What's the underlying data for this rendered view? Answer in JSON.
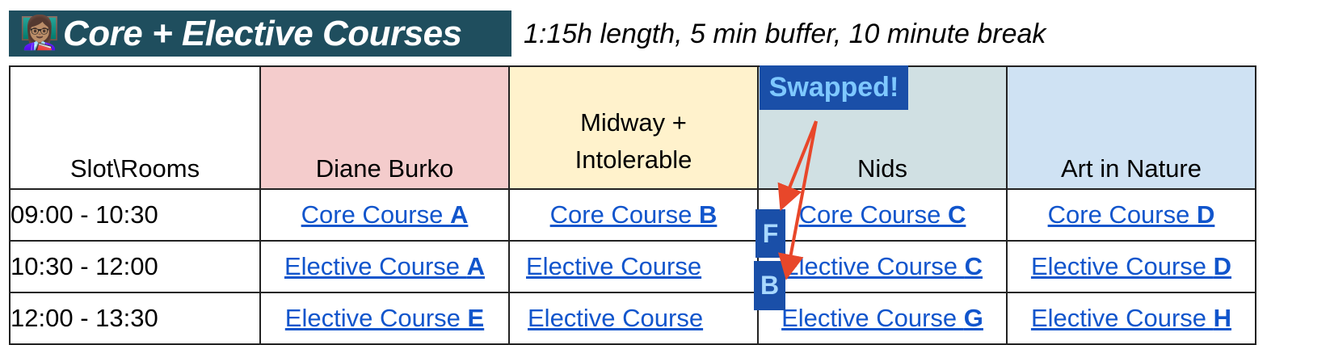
{
  "title": {
    "emoji": "👩🏽‍🏫",
    "text": "Core + Elective Courses",
    "subtitle": "1:15h length, 5 min buffer, 10 minute break"
  },
  "table": {
    "corner": "Slot\\Rooms",
    "rooms": [
      {
        "name": "Diane Burko",
        "color": "#f4cccc"
      },
      {
        "name": "Midway +\nIntolerable",
        "color": "#fff2cc"
      },
      {
        "name": "Nids",
        "color": "#d0e0e3"
      },
      {
        "name": "Art in Nature",
        "color": "#cfe2f3"
      }
    ],
    "rows": [
      {
        "slot": "09:00 - 10:30",
        "cells": [
          {
            "prefix": "Core Course ",
            "letter": "A"
          },
          {
            "prefix": "Core Course ",
            "letter": "B"
          },
          {
            "prefix": "Core Course ",
            "letter": "C"
          },
          {
            "prefix": "Core Course ",
            "letter": "D"
          }
        ]
      },
      {
        "slot": "10:30 - 12:00",
        "cells": [
          {
            "prefix": "Elective Course ",
            "letter": "A"
          },
          {
            "prefix": "Elective Course ",
            "letter": ""
          },
          {
            "prefix": "Elective Course ",
            "letter": "C"
          },
          {
            "prefix": "Elective Course ",
            "letter": "D"
          }
        ]
      },
      {
        "slot": "12:00 - 13:30",
        "cells": [
          {
            "prefix": "Elective Course ",
            "letter": "E"
          },
          {
            "prefix": "Elective Course ",
            "letter": ""
          },
          {
            "prefix": "Elective Course ",
            "letter": "G"
          },
          {
            "prefix": "Elective Course ",
            "letter": "H"
          }
        ]
      }
    ]
  },
  "annotation": {
    "label": "Swapped!",
    "letter_row2": "F",
    "letter_row3": "B",
    "arrow_color": "#e8472a"
  }
}
